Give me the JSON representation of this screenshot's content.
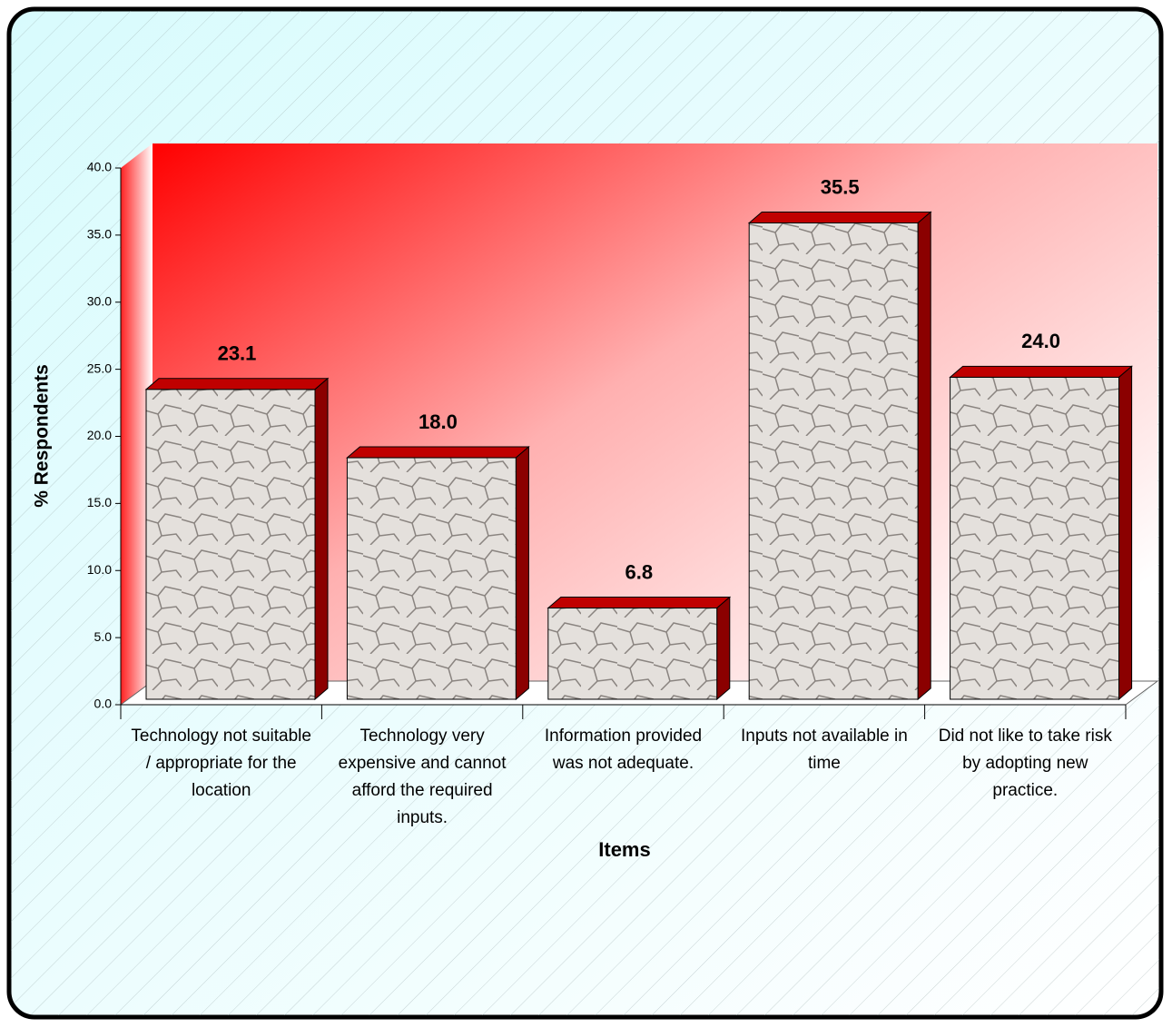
{
  "chart_data": {
    "type": "bar3d",
    "x_label": "Items",
    "y_label": "% Respondents",
    "categories": [
      "Technology not suitable / appropriate for the location",
      "Technology very expensive and cannot afford the required inputs.",
      "Information provided was not adequate.",
      "Inputs not available in time",
      "Did not like to take risk by adopting new practice."
    ],
    "values": [
      23.1,
      18.0,
      6.8,
      35.5,
      24.0
    ],
    "value_labels": [
      "23.1",
      "18.0",
      "6.8",
      "35.5",
      "24.0"
    ],
    "color": "#c00000",
    "ylim": [
      0,
      40
    ],
    "yticks": [
      {
        "value": 0,
        "label": "0.0"
      },
      {
        "value": 5,
        "label": "5.0"
      },
      {
        "value": 10,
        "label": "10.0"
      },
      {
        "value": 15,
        "label": "15.0"
      },
      {
        "value": 20,
        "label": "20.0"
      },
      {
        "value": 25,
        "label": "25.0"
      },
      {
        "value": 30,
        "label": "30.0"
      },
      {
        "value": 35,
        "label": "35.0"
      },
      {
        "value": 40,
        "label": "40.0"
      }
    ]
  }
}
